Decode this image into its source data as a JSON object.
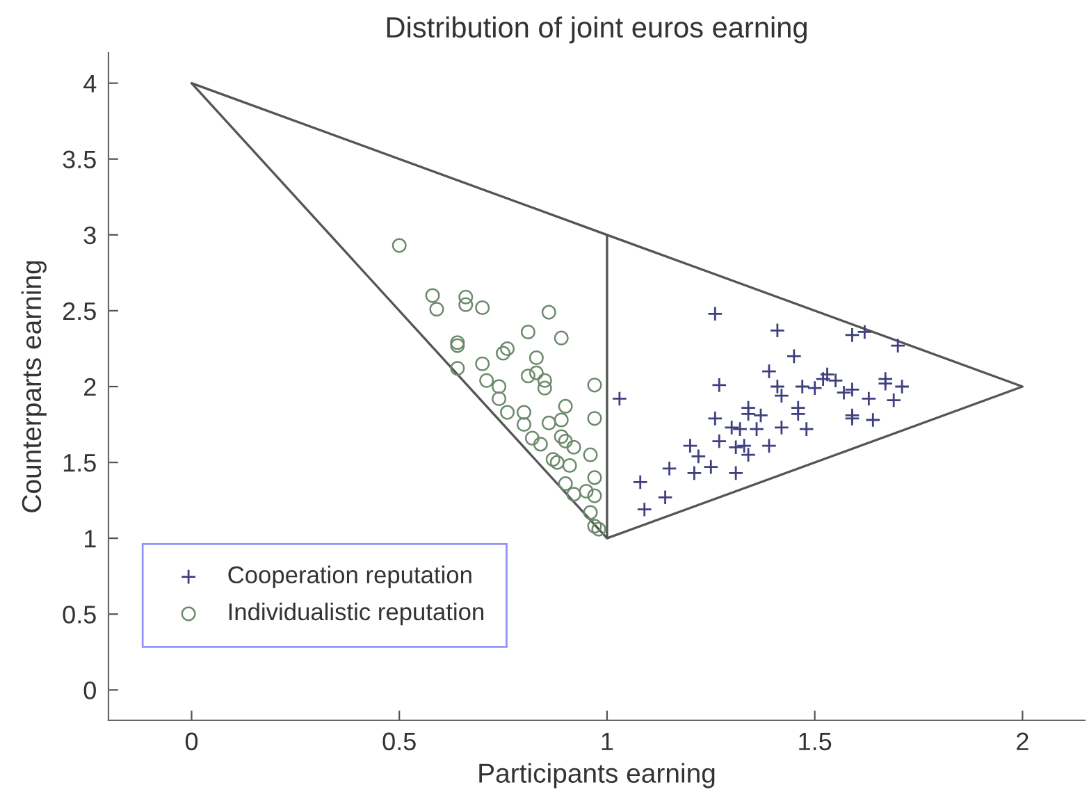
{
  "chart_data": {
    "type": "scatter",
    "title": "Distribution of joint euros earning",
    "xlabel": "Participants earning",
    "ylabel": "Counterparts earning",
    "xlim": [
      -0.2,
      2.15
    ],
    "ylim": [
      -0.2,
      4.2
    ],
    "xticks": [
      0,
      0.5,
      1,
      1.5,
      2
    ],
    "yticks": [
      0,
      0.5,
      1,
      1.5,
      2,
      2.5,
      3,
      3.5,
      4
    ],
    "legend": "bottom left",
    "series": [
      {
        "type": "line",
        "color": "#555555",
        "marker": "none",
        "line_style": "solid",
        "x": [
          1,
          0,
          1,
          2,
          1,
          1
        ],
        "values": [
          3,
          4,
          1,
          2,
          3,
          1
        ]
      },
      {
        "name": "Cooperation reputation",
        "color": "#3f3f80",
        "marker": "cross",
        "x": [
          1.26,
          1.41,
          1.45,
          1.39,
          1.27,
          1.03,
          1.41,
          1.42,
          1.47,
          1.5,
          1.53,
          1.52,
          1.55,
          1.57,
          1.34,
          1.34,
          1.37,
          1.46,
          1.46,
          1.26,
          1.3,
          1.32,
          1.36,
          1.42,
          1.48,
          1.27,
          1.2,
          1.31,
          1.33,
          1.34,
          1.39,
          1.22,
          1.15,
          1.21,
          1.25,
          1.31,
          1.08,
          1.14,
          1.09,
          1.59,
          1.62,
          1.7,
          1.59,
          1.63,
          1.67,
          1.67,
          1.71,
          1.69,
          1.59,
          1.59,
          1.64
        ],
        "values": [
          2.48,
          2.37,
          2.2,
          2.1,
          2.01,
          1.92,
          2.0,
          1.94,
          2.0,
          1.99,
          2.08,
          2.05,
          2.04,
          1.96,
          1.86,
          1.82,
          1.81,
          1.86,
          1.82,
          1.79,
          1.73,
          1.72,
          1.72,
          1.73,
          1.72,
          1.64,
          1.61,
          1.6,
          1.61,
          1.55,
          1.61,
          1.54,
          1.46,
          1.43,
          1.47,
          1.43,
          1.37,
          1.27,
          1.19,
          2.34,
          2.36,
          2.27,
          1.98,
          1.92,
          2.05,
          2.02,
          2.0,
          1.91,
          1.81,
          1.79,
          1.78
        ]
      },
      {
        "name": "Individualistic reputation",
        "color": "#6b8a6b",
        "marker": "circle",
        "x": [
          0.5,
          0.58,
          0.59,
          0.66,
          0.66,
          0.7,
          0.86,
          0.89,
          0.81,
          0.64,
          0.64,
          0.76,
          0.75,
          0.83,
          0.64,
          0.7,
          0.81,
          0.83,
          0.85,
          0.85,
          0.71,
          0.74,
          0.74,
          0.76,
          0.8,
          0.8,
          0.9,
          0.86,
          0.89,
          0.97,
          0.97,
          0.82,
          0.84,
          0.89,
          0.9,
          0.92,
          0.87,
          0.88,
          0.91,
          0.96,
          0.97,
          0.9,
          0.92,
          0.95,
          0.97,
          0.96,
          0.97,
          0.98
        ],
        "values": [
          2.93,
          2.6,
          2.51,
          2.59,
          2.54,
          2.52,
          2.49,
          2.32,
          2.36,
          2.29,
          2.27,
          2.25,
          2.22,
          2.19,
          2.12,
          2.15,
          2.07,
          2.09,
          2.04,
          1.99,
          2.04,
          2.0,
          1.92,
          1.83,
          1.83,
          1.75,
          1.87,
          1.76,
          1.78,
          2.01,
          1.79,
          1.66,
          1.62,
          1.67,
          1.64,
          1.6,
          1.52,
          1.5,
          1.48,
          1.55,
          1.4,
          1.36,
          1.29,
          1.31,
          1.28,
          1.17,
          1.08,
          1.06
        ]
      }
    ]
  }
}
